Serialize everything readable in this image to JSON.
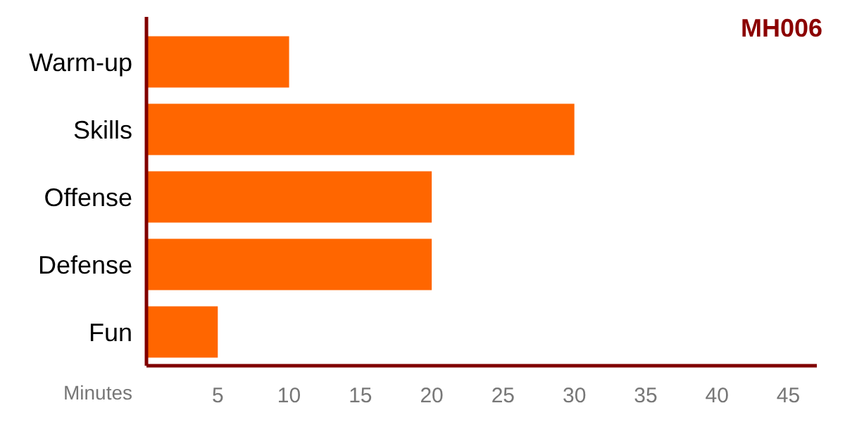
{
  "chart_data": {
    "type": "bar",
    "orientation": "horizontal",
    "title": "MH006",
    "xlabel": "Minutes",
    "categories": [
      "Warm-up",
      "Skills",
      "Offense",
      "Defense",
      "Fun"
    ],
    "values": [
      10,
      30,
      20,
      20,
      5
    ],
    "color": "#ff6600",
    "xlim": [
      0,
      47
    ],
    "xticks": [
      5,
      10,
      15,
      20,
      25,
      30,
      35,
      40,
      45
    ],
    "grid": false
  }
}
